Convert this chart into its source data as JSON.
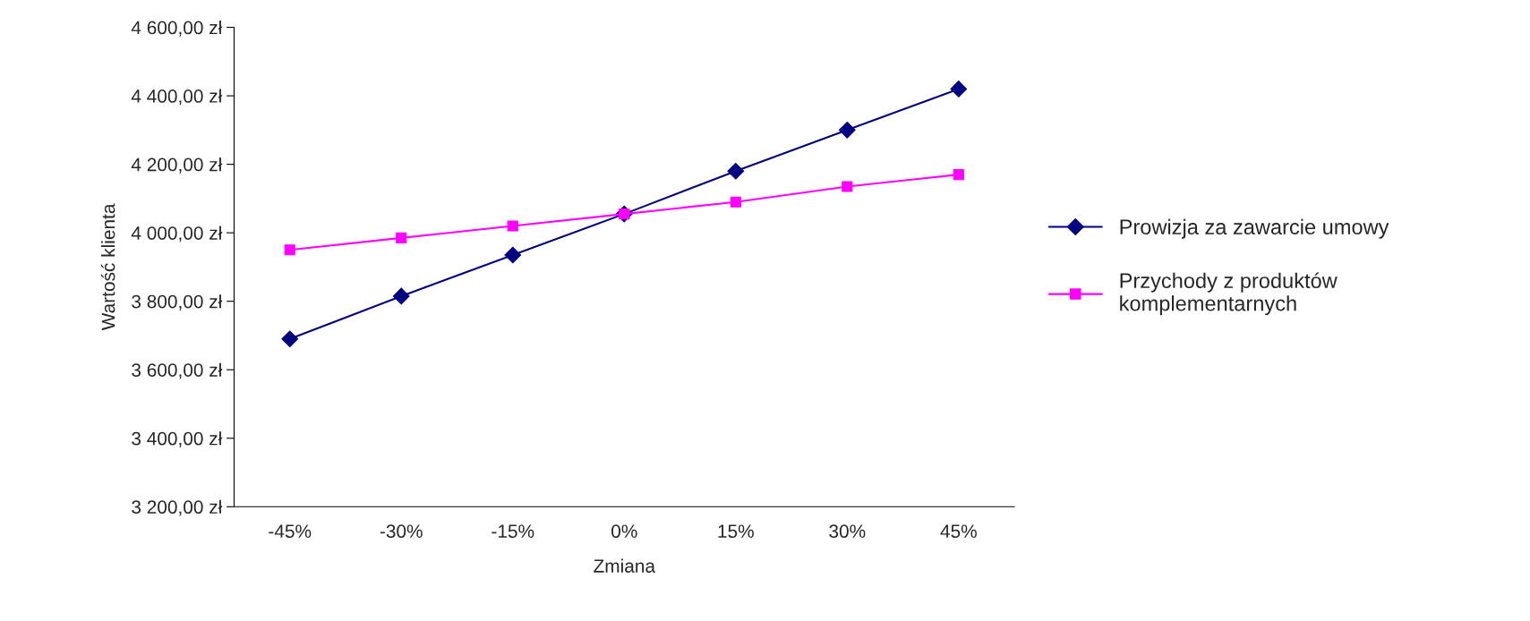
{
  "chart_data": {
    "type": "line",
    "xlabel": "Zmiana",
    "ylabel": "Wartość klienta",
    "categories": [
      "-45%",
      "-30%",
      "-15%",
      "0%",
      "15%",
      "30%",
      "45%"
    ],
    "series": [
      {
        "name": "Prowizja za zawarcie umowy",
        "color": "#000080",
        "marker": "diamond",
        "values": [
          3690,
          3815,
          3935,
          4055,
          4180,
          4300,
          4420
        ]
      },
      {
        "name": "Przychody z produktów komplementarnych",
        "color": "#ff00ff",
        "marker": "square",
        "values": [
          3950,
          3985,
          4020,
          4055,
          4090,
          4135,
          4170
        ]
      }
    ],
    "ylim": [
      3200,
      4600
    ],
    "yticks": [
      {
        "value": 3200,
        "label": "3 200,00 zł"
      },
      {
        "value": 3400,
        "label": "3 400,00 zł"
      },
      {
        "value": 3600,
        "label": "3 600,00 zł"
      },
      {
        "value": 3800,
        "label": "3 800,00 zł"
      },
      {
        "value": 4000,
        "label": "4 000,00 zł"
      },
      {
        "value": 4200,
        "label": "4 200,00 zł"
      },
      {
        "value": 4400,
        "label": "4 400,00 zł"
      },
      {
        "value": 4600,
        "label": "4 600,00 zł"
      }
    ],
    "grid": false,
    "legend": "right",
    "line_style": "solid"
  }
}
